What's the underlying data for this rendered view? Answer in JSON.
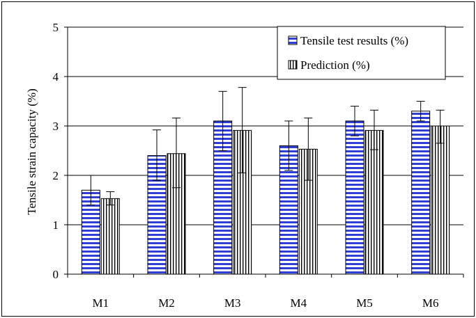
{
  "chart_data": {
    "type": "bar",
    "ylabel": "Tensile strain capacity (%)",
    "xlabel": "",
    "ylim": [
      0,
      5
    ],
    "yticks": [
      0,
      1,
      2,
      3,
      4,
      5
    ],
    "grid": true,
    "legend_position": "top-right",
    "categories": [
      "M1",
      "M2",
      "M3",
      "M4",
      "M5",
      "M6"
    ],
    "series": [
      {
        "name": "Tensile test results (%)",
        "pattern": "horizontal-stripes",
        "color": "#2f3fd6",
        "values": [
          1.7,
          2.4,
          3.1,
          2.6,
          3.1,
          3.3
        ],
        "error_low": [
          1.4,
          1.9,
          2.5,
          2.1,
          2.8,
          3.1
        ],
        "error_high": [
          2.0,
          2.92,
          3.7,
          3.1,
          3.4,
          3.5
        ]
      },
      {
        "name": "Prediction (%)",
        "pattern": "vertical-stripes",
        "color": "#000000",
        "values": [
          1.53,
          2.44,
          2.91,
          2.53,
          2.91,
          3.0
        ],
        "error_low": [
          1.4,
          1.75,
          2.05,
          1.9,
          2.52,
          2.65
        ],
        "error_high": [
          1.67,
          3.16,
          3.78,
          3.16,
          3.32,
          3.32
        ]
      }
    ]
  }
}
